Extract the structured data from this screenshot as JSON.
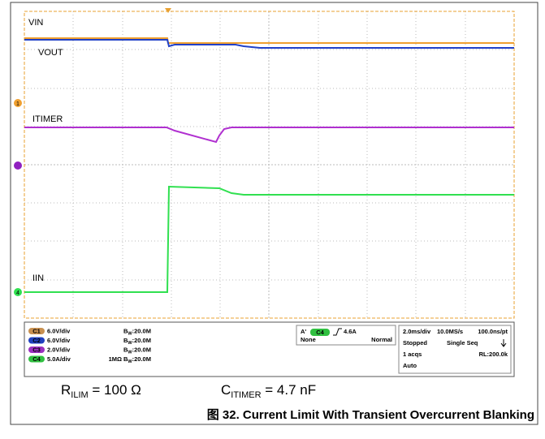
{
  "traces": [
    {
      "label": "VIN"
    },
    {
      "label": "VOUT"
    },
    {
      "label": "ITIMER"
    },
    {
      "label": "IIN"
    }
  ],
  "markers": {
    "ch1": "1",
    "ch4": "4"
  },
  "channels": [
    {
      "id": "C1",
      "scale": "6.0V/div",
      "impedance": "",
      "bw": {
        "base": "B",
        "sub": "W",
        "value": ":20.0M"
      }
    },
    {
      "id": "C2",
      "scale": "6.0V/div",
      "impedance": "",
      "bw": {
        "base": "B",
        "sub": "W",
        "value": ":20.0M"
      }
    },
    {
      "id": "C3",
      "scale": "2.0V/div",
      "impedance": "",
      "bw": {
        "base": "B",
        "sub": "W",
        "value": ":20.0M"
      }
    },
    {
      "id": "C4",
      "scale": "5.0A/div",
      "impedance": "1MΩ",
      "bw": {
        "base": "B",
        "sub": "W",
        "value": ":20.0M"
      }
    }
  ],
  "trigger": {
    "mode": "A'",
    "channel": "C4",
    "level": "4.6A",
    "coupling": "None",
    "type": "Normal"
  },
  "timebase": {
    "scale": "2.0ms/div",
    "rate": "10.0MS/s",
    "resolution": "100.0ns/pt",
    "state": "Stopped",
    "sequence": "Single Seq",
    "acqs": "1 acqs",
    "record": "RL:200.0k",
    "trigger_mode": "Auto"
  },
  "annotations": [
    {
      "symbol": "R",
      "sub": "ILIM",
      "value": " = 100 Ω"
    },
    {
      "symbol": "C",
      "sub": "ITIMER",
      "value": " = 4.7 nF"
    }
  ],
  "caption": "图 32. Current Limit With Transient Overcurrent Blanking"
}
